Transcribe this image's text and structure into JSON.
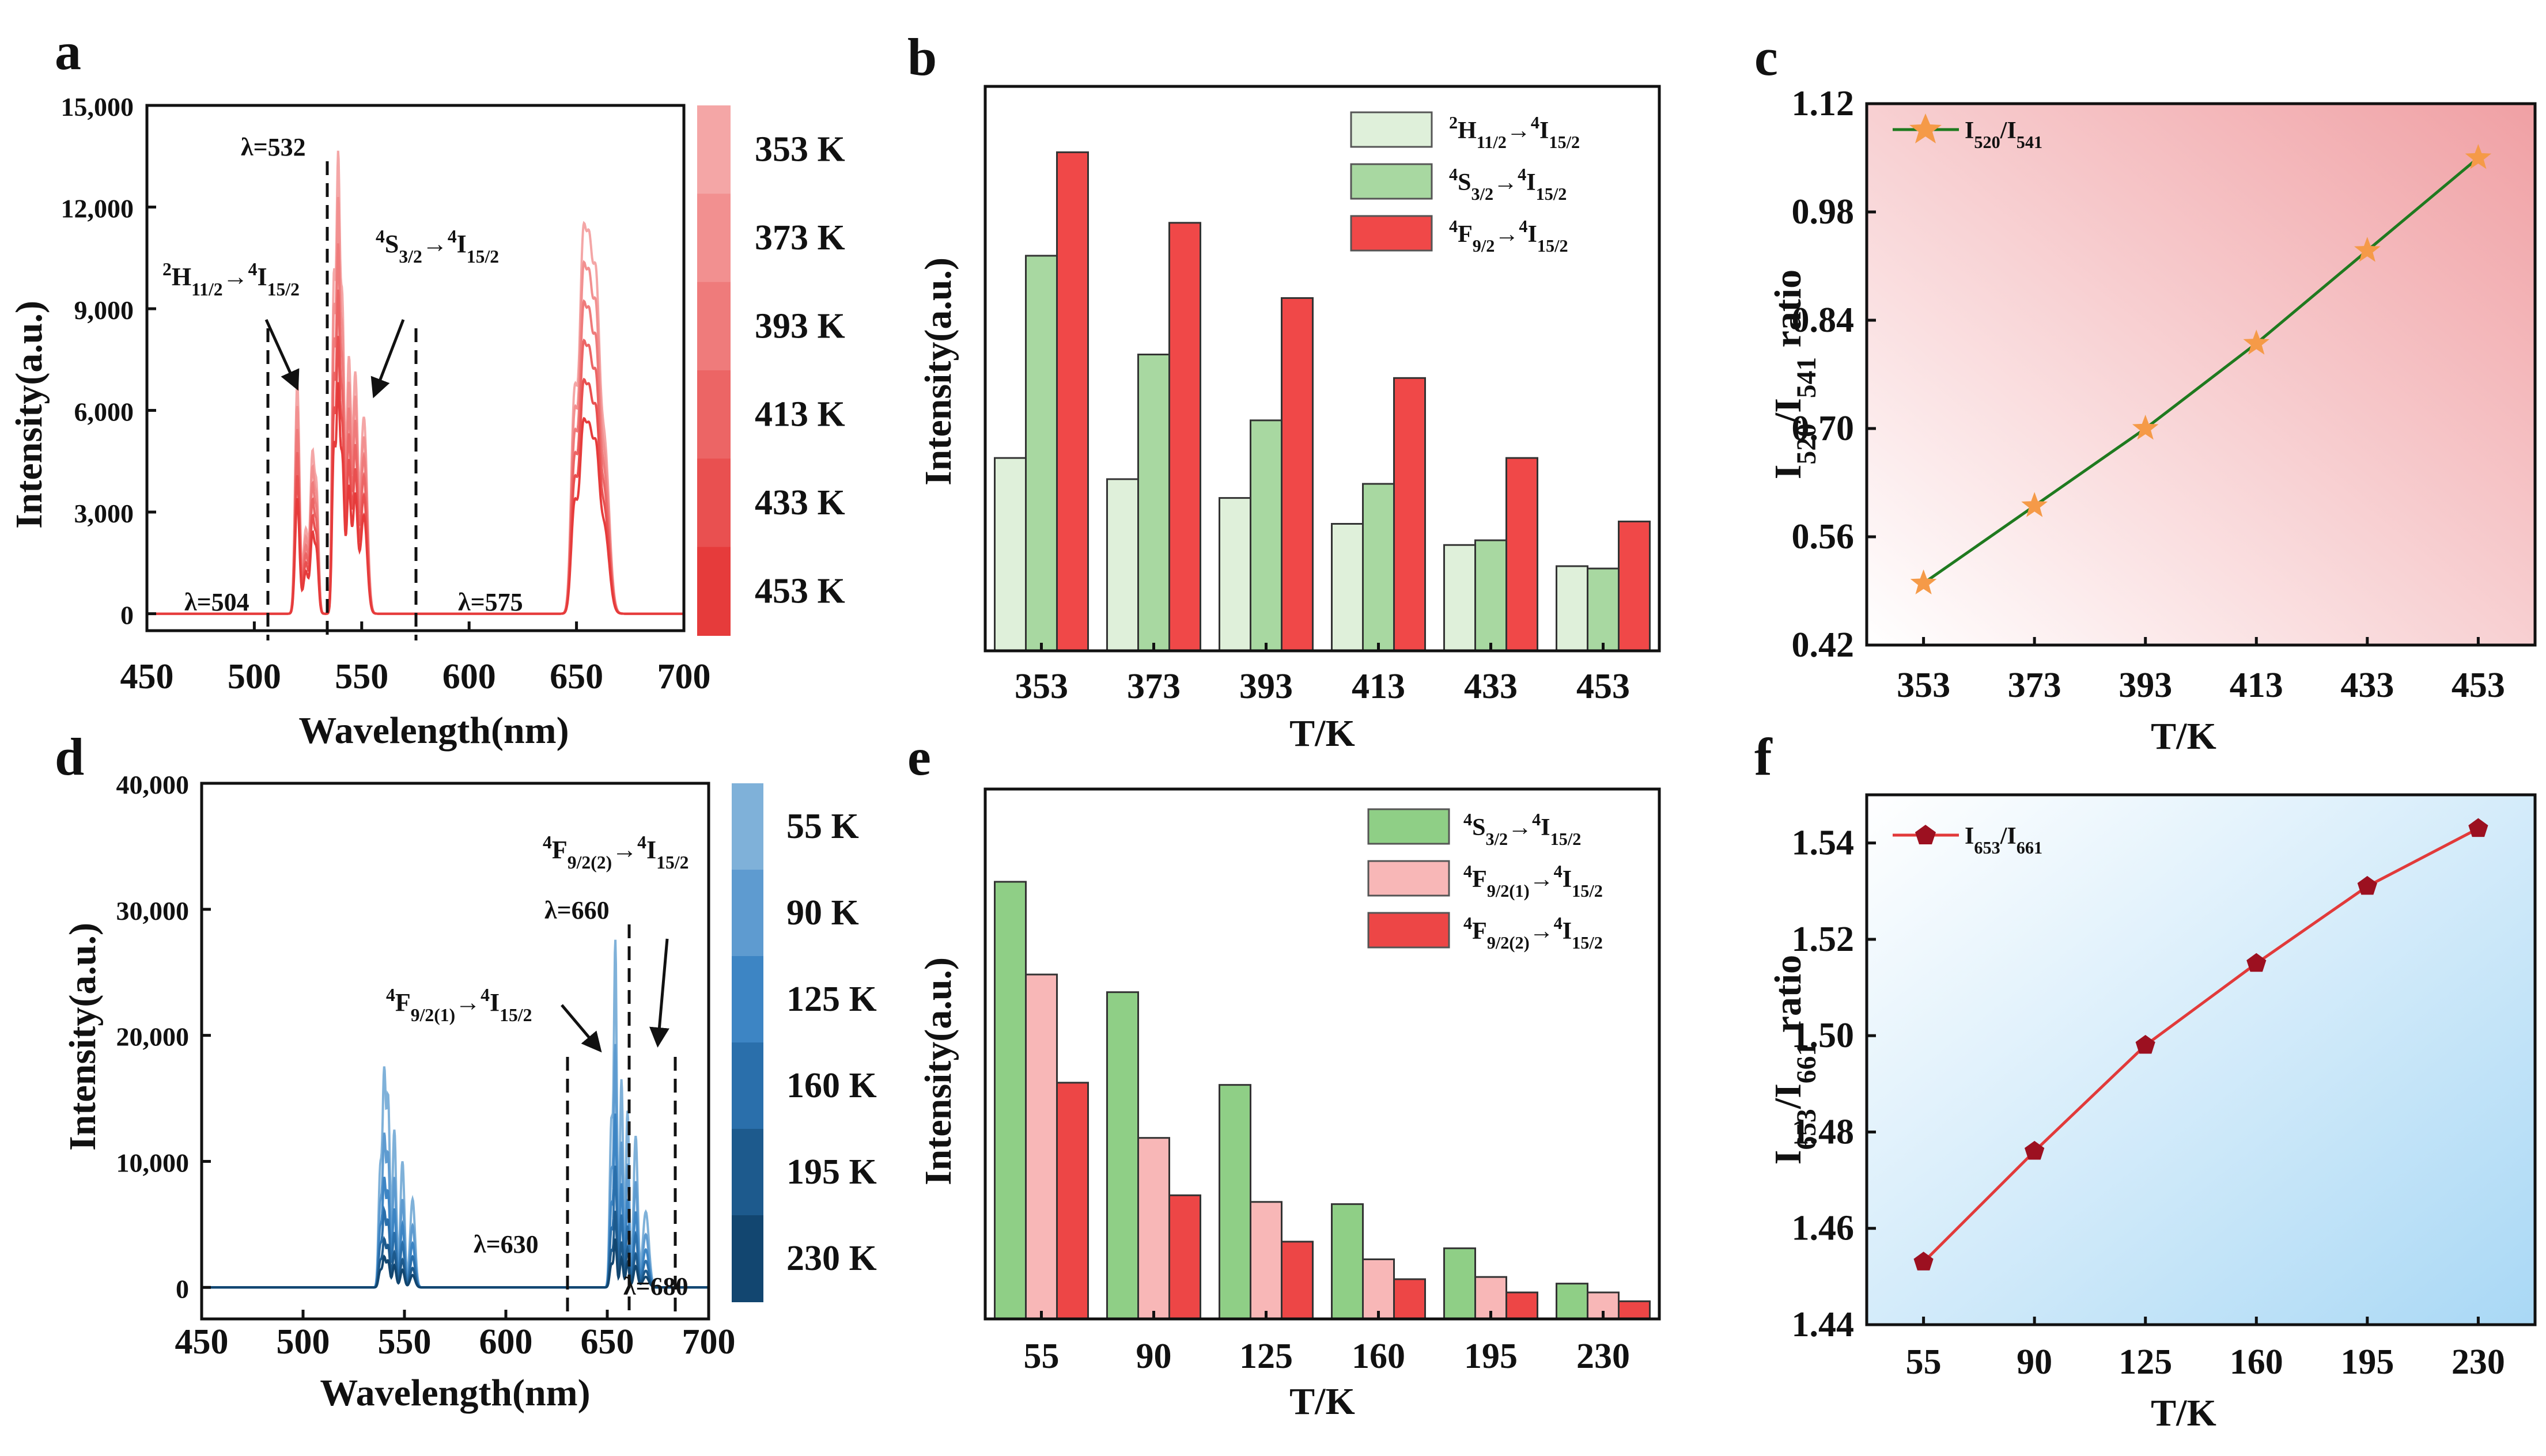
{
  "figure": {
    "panels": [
      "a",
      "b",
      "c",
      "d",
      "e",
      "f"
    ]
  },
  "chart_data": [
    {
      "panel": "a",
      "type": "line",
      "title": "",
      "xlabel": "Wavelength(nm)",
      "ylabel": "Intensity(a.u.)",
      "xlim": [
        450,
        700
      ],
      "ylim": [
        -500,
        15000
      ],
      "xticks": [
        "450",
        "500",
        "550",
        "600",
        "650",
        "700"
      ],
      "yticks": [
        "0",
        "3,000",
        "6,000",
        "9,000",
        "12,000",
        "15,000"
      ],
      "series_names": [
        "353 K",
        "373 K",
        "393 K",
        "413 K",
        "433 K",
        "453 K"
      ],
      "series_colors": [
        "#f4a6a6",
        "#f29090",
        "#ef7b7b",
        "#ec6565",
        "#e95050",
        "#e63b3b"
      ],
      "series_scale": [
        1.0,
        0.9,
        0.8,
        0.7,
        0.6,
        0.5
      ],
      "peaks_353K": [
        {
          "x": 520,
          "y": 6800,
          "w": 1.0
        },
        {
          "x": 524,
          "y": 2500,
          "w": 1.2
        },
        {
          "x": 527,
          "y": 4400,
          "w": 0.9
        },
        {
          "x": 529,
          "y": 3500,
          "w": 0.9
        },
        {
          "x": 537,
          "y": 9500,
          "w": 0.8
        },
        {
          "x": 539,
          "y": 12500,
          "w": 0.8
        },
        {
          "x": 541,
          "y": 8800,
          "w": 0.9
        },
        {
          "x": 544,
          "y": 7400,
          "w": 1.0
        },
        {
          "x": 547,
          "y": 6900,
          "w": 1.1
        },
        {
          "x": 551,
          "y": 5800,
          "w": 1.5
        },
        {
          "x": 649,
          "y": 6200,
          "w": 1.5
        },
        {
          "x": 653,
          "y": 10300,
          "w": 1.6
        },
        {
          "x": 656,
          "y": 8000,
          "w": 1.4
        },
        {
          "x": 659,
          "y": 8500,
          "w": 1.6
        },
        {
          "x": 663,
          "y": 5000,
          "w": 2.2
        }
      ],
      "annotations": {
        "lam532": "λ=532",
        "lam504": "λ=504",
        "lam575": "λ=575",
        "h_pre": "2",
        "h_main": "H",
        "h_sub": "11/2",
        "h_arrow": "→",
        "h_sup2": "4",
        "h_main2": "I",
        "h_sub2": "15/2",
        "s_pre": "4",
        "s_main": "S",
        "s_sub": "3/2",
        "s_arrow": "→",
        "s_sup2": "4",
        "s_main2": "I",
        "s_sub2": "15/2"
      }
    },
    {
      "panel": "b",
      "type": "bar",
      "xlabel": "T/K",
      "ylabel": "Intensity(a.u.)",
      "categories": [
        "353",
        "373",
        "393",
        "413",
        "433",
        "453"
      ],
      "series": [
        {
          "name": "2H11/2→4I15/2",
          "color": "#dff0da",
          "values": [
            4.1,
            3.65,
            3.25,
            2.7,
            2.25,
            1.8
          ]
        },
        {
          "name": "4S3/2→4I15/2",
          "color": "#a8d8a1",
          "values": [
            8.4,
            6.3,
            4.9,
            3.55,
            2.35,
            1.75
          ]
        },
        {
          "name": "4F9/2→4I15/2",
          "color": "#f04848",
          "values": [
            10.6,
            9.1,
            7.5,
            5.8,
            4.1,
            2.75
          ]
        }
      ],
      "ylim": [
        0,
        12
      ],
      "legend": [
        {
          "pre": "2",
          "main": "H",
          "sub": "11/2",
          "arrow": "→",
          "sup2": "4",
          "main2": "I",
          "sub2": "15/2"
        },
        {
          "pre": "4",
          "main": "S",
          "sub": "3/2",
          "arrow": "→",
          "sup2": "4",
          "main2": "I",
          "sub2": "15/2"
        },
        {
          "pre": "4",
          "main": "F",
          "sub": "9/2",
          "arrow": "→",
          "sup2": "4",
          "main2": "I",
          "sub2": "15/2"
        }
      ]
    },
    {
      "panel": "c",
      "type": "line",
      "xlabel": "T/K",
      "ylabel": {
        "a": "I",
        "b": "520",
        "c": "/I",
        "d": "541",
        "e": " ratio"
      },
      "x": [
        353,
        373,
        393,
        413,
        433,
        453
      ],
      "categories": [
        "353",
        "373",
        "393",
        "413",
        "433",
        "453"
      ],
      "values": [
        0.5,
        0.6,
        0.7,
        0.81,
        0.93,
        1.05
      ],
      "ylim": [
        0.42,
        1.12
      ],
      "yticks": [
        "0.42",
        "0.56",
        "0.70",
        "0.84",
        "0.98",
        "1.12"
      ],
      "line_color": "#1f7a1f",
      "marker_color": "#f59a48",
      "legend": {
        "a": "I",
        "b": "520",
        "c": "/I",
        "d": "541"
      }
    },
    {
      "panel": "d",
      "type": "line",
      "xlabel": "Wavelength(nm)",
      "ylabel": "Intensity(a.u.)",
      "xlim": [
        450,
        700
      ],
      "ylim": [
        -2500,
        40000
      ],
      "xticks": [
        "450",
        "500",
        "550",
        "600",
        "650",
        "700"
      ],
      "yticks": [
        "0",
        "10,000",
        "20,000",
        "30,000",
        "40,000"
      ],
      "series_names": [
        "55 K",
        "90 K",
        "125 K",
        "160 K",
        "195 K",
        "230 K"
      ],
      "series_colors": [
        "#7fb1d9",
        "#5e9bd0",
        "#3d85c4",
        "#2a6fab",
        "#1d5a8d",
        "#124670"
      ],
      "series_scale": [
        1.0,
        0.7,
        0.5,
        0.35,
        0.22,
        0.14
      ],
      "peaks_55K": [
        {
          "x": 538,
          "y": 9000,
          "w": 0.8
        },
        {
          "x": 540,
          "y": 16500,
          "w": 0.8
        },
        {
          "x": 542,
          "y": 14500,
          "w": 0.8
        },
        {
          "x": 545,
          "y": 12500,
          "w": 0.9
        },
        {
          "x": 549,
          "y": 10000,
          "w": 1.0
        },
        {
          "x": 554,
          "y": 7000,
          "w": 1.2
        },
        {
          "x": 652,
          "y": 13000,
          "w": 0.8
        },
        {
          "x": 654,
          "y": 27000,
          "w": 0.7
        },
        {
          "x": 657,
          "y": 16500,
          "w": 0.8
        },
        {
          "x": 660,
          "y": 14000,
          "w": 0.8
        },
        {
          "x": 664,
          "y": 12000,
          "w": 1.0
        },
        {
          "x": 669,
          "y": 6000,
          "w": 1.5
        }
      ],
      "annotations": {
        "lam660": "λ=660",
        "lam630": "λ=630",
        "lam680": "λ=680",
        "f1_pre": "4",
        "f1_main": "F",
        "f1_sub": "9/2(1)",
        "f1_arrow": "→",
        "f1_sup2": "4",
        "f1_main2": "I",
        "f1_sub2": "15/2",
        "f2_pre": "4",
        "f2_main": "F",
        "f2_sub": "9/2(2)",
        "f2_arrow": "→",
        "f2_sup2": "4",
        "f2_main2": "I",
        "f2_sub2": "15/2"
      }
    },
    {
      "panel": "e",
      "type": "bar",
      "xlabel": "T/K",
      "ylabel": "Intensity(a.u.)",
      "categories": [
        "55",
        "90",
        "125",
        "160",
        "195",
        "230"
      ],
      "series": [
        {
          "name": "4S3/2→4I15/2",
          "color": "#8fcf86",
          "values": [
            9.9,
            7.4,
            5.3,
            2.6,
            1.6,
            0.8
          ]
        },
        {
          "name": "4F9/2(1)→4I15/2",
          "color": "#f8b7b7",
          "values": [
            7.8,
            4.1,
            2.65,
            1.35,
            0.95,
            0.6
          ]
        },
        {
          "name": "4F9/2(2)→4I15/2",
          "color": "#ed4646",
          "values": [
            5.35,
            2.8,
            1.75,
            0.9,
            0.6,
            0.4
          ]
        }
      ],
      "ylim": [
        0,
        12
      ],
      "legend": [
        {
          "pre": "4",
          "main": "S",
          "sub": "3/2",
          "arrow": "→",
          "sup2": "4",
          "main2": "I",
          "sub2": "15/2"
        },
        {
          "pre": "4",
          "main": "F",
          "sub": "9/2(1)",
          "arrow": "→",
          "sup2": "4",
          "main2": "I",
          "sub2": "15/2"
        },
        {
          "pre": "4",
          "main": "F",
          "sub": "9/2(2)",
          "arrow": "→",
          "sup2": "4",
          "main2": "I",
          "sub2": "15/2"
        }
      ]
    },
    {
      "panel": "f",
      "type": "line",
      "xlabel": "T/K",
      "ylabel": {
        "a": "I",
        "b": "653",
        "c": "/I",
        "d": "661",
        "e": " ratio"
      },
      "x": [
        55,
        90,
        125,
        160,
        195,
        230
      ],
      "categories": [
        "55",
        "90",
        "125",
        "160",
        "195",
        "230"
      ],
      "values": [
        1.453,
        1.476,
        1.498,
        1.515,
        1.531,
        1.543
      ],
      "ylim": [
        1.44,
        1.55
      ],
      "yticks": [
        "1.44",
        "1.46",
        "1.48",
        "1.50",
        "1.52",
        "1.54"
      ],
      "line_color": "#e23a3a",
      "marker_color": "#9c1020",
      "legend": {
        "a": "I",
        "b": "653",
        "c": "/I",
        "d": "661"
      }
    }
  ]
}
